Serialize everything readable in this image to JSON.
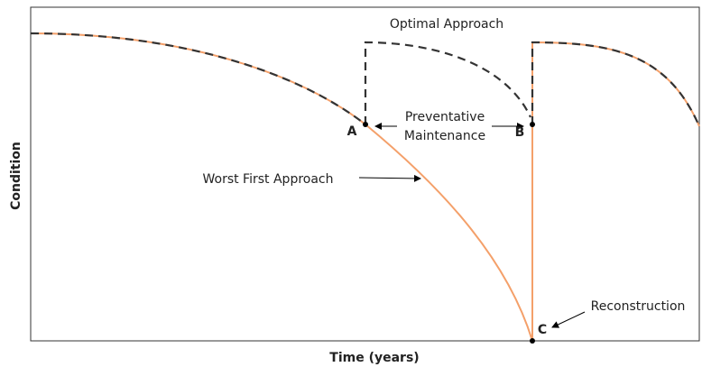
{
  "title": "Optimal Approach",
  "axes": {
    "x_label": "Time (years)",
    "y_label": "Condition"
  },
  "annotations": {
    "preventative": "Preventative",
    "maintenance": "Maintenance",
    "worst_first": "Worst First Approach",
    "reconstruction": "Reconstruction"
  },
  "points": {
    "a": "A",
    "b": "B",
    "c": "C"
  }
}
